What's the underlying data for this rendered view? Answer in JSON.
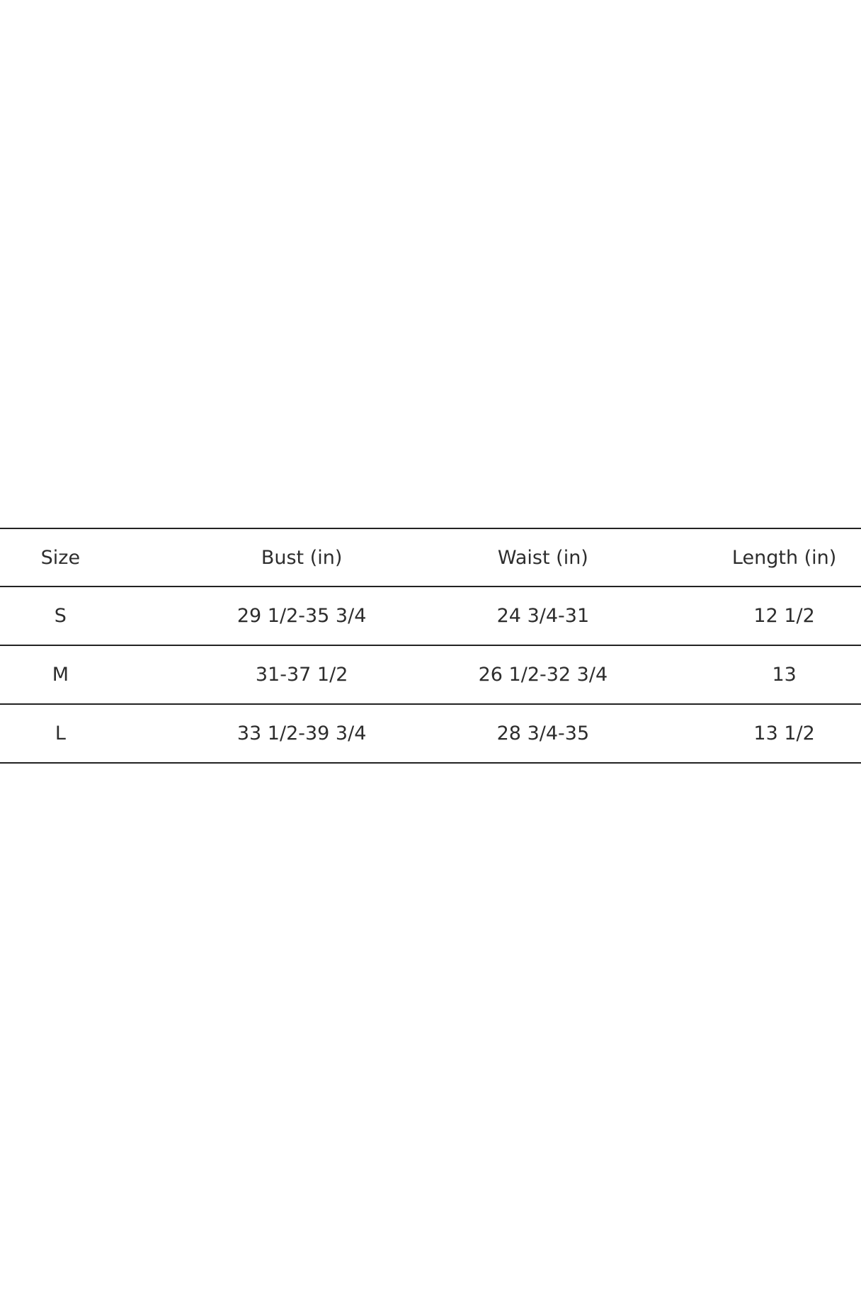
{
  "chart_data": {
    "type": "table",
    "title": "",
    "columns": [
      "Size",
      "Bust (in)",
      "Waist (in)",
      "Length (in)"
    ],
    "rows": [
      [
        "S",
        "29 1/2-35 3/4",
        "24 3/4-31",
        "12 1/2"
      ],
      [
        "M",
        "31-37 1/2",
        "26 1/2-32 3/4",
        "13"
      ],
      [
        "L",
        "33 1/2-39 3/4",
        "28 3/4-35",
        "13 1/2"
      ]
    ],
    "layout": {
      "gridlines": "horizontal-only",
      "header_row": true,
      "cell_alignment": "center"
    }
  },
  "colors": {
    "background": "#ffffff",
    "text": "#2d2d2d",
    "rule_line": "#222222"
  }
}
